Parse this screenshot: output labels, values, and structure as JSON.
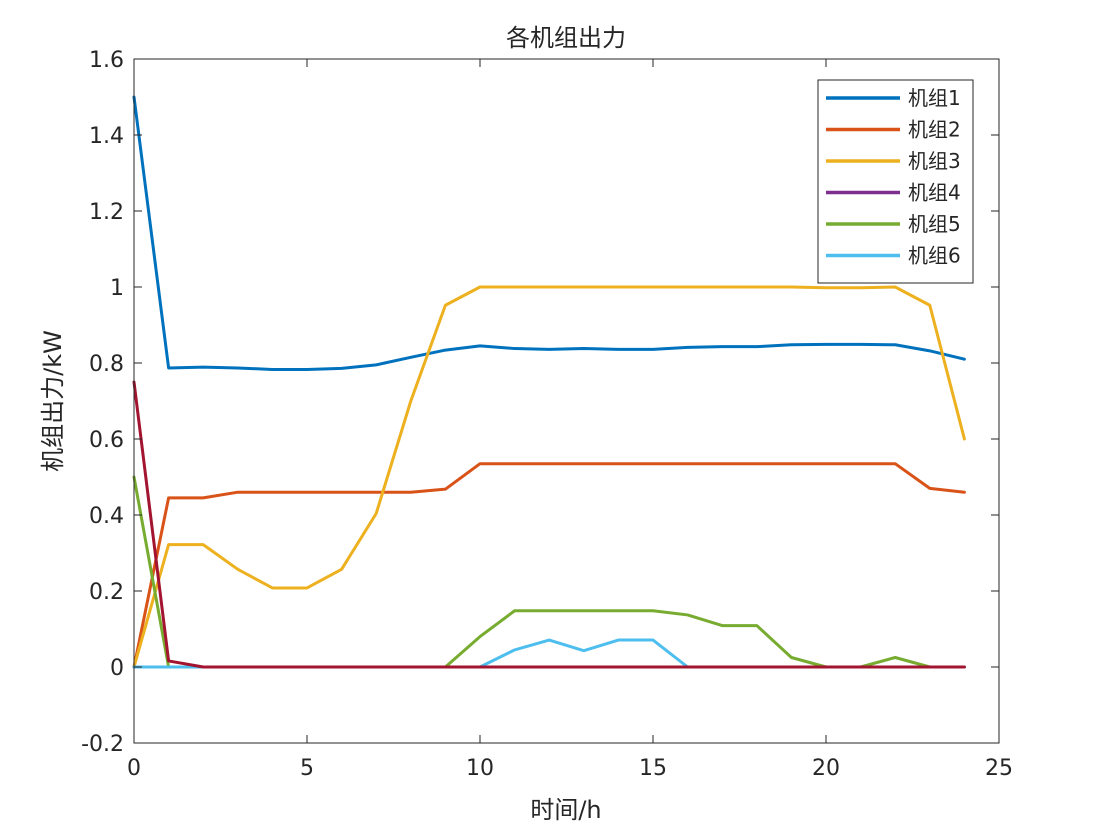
{
  "chart_data": {
    "type": "line",
    "title": "各机组出力",
    "xlabel": "时间/h",
    "ylabel": "机组出力/kW",
    "xlim": [
      0,
      25
    ],
    "ylim": [
      -0.2,
      1.6
    ],
    "xticks": [
      "0",
      "5",
      "10",
      "15",
      "20",
      "25"
    ],
    "yticks": [
      "-0.2",
      "0",
      "0.2",
      "0.4",
      "0.6",
      "0.8",
      "1",
      "1.2",
      "1.4",
      "1.6"
    ],
    "grid": false,
    "legend_position": "top-right",
    "x": [
      0,
      1,
      2,
      3,
      4,
      5,
      6,
      7,
      8,
      9,
      10,
      11,
      12,
      13,
      14,
      15,
      16,
      17,
      18,
      19,
      20,
      21,
      22,
      23,
      24
    ],
    "series": [
      {
        "name": "机组1",
        "color": "#0072BD",
        "values": [
          1.5,
          0.787,
          0.789,
          0.787,
          0.783,
          0.783,
          0.786,
          0.795,
          0.815,
          0.834,
          0.845,
          0.838,
          0.836,
          0.838,
          0.836,
          0.836,
          0.841,
          0.843,
          0.843,
          0.848,
          0.849,
          0.849,
          0.848,
          0.832,
          0.81
        ]
      },
      {
        "name": "机组2",
        "color": "#D95319",
        "values": [
          0,
          0.445,
          0.445,
          0.46,
          0.46,
          0.46,
          0.46,
          0.46,
          0.46,
          0.468,
          0.535,
          0.535,
          0.535,
          0.535,
          0.535,
          0.535,
          0.535,
          0.535,
          0.535,
          0.535,
          0.535,
          0.535,
          0.535,
          0.47,
          0.46
        ]
      },
      {
        "name": "机组3",
        "color": "#EDB120",
        "values": [
          0,
          0.322,
          0.322,
          0.257,
          0.208,
          0.208,
          0.257,
          0.404,
          0.7,
          0.952,
          1.0,
          1.0,
          1.0,
          1.0,
          1.0,
          1.0,
          1.0,
          1.0,
          1.0,
          1.0,
          0.998,
          0.998,
          1.0,
          0.952,
          0.6
        ]
      },
      {
        "name": "机组4",
        "color": "#7E2F8E",
        "values": [
          0,
          0,
          0,
          0,
          0,
          0,
          0,
          0,
          0,
          0,
          0,
          0,
          0,
          0,
          0,
          0,
          0,
          0,
          0,
          0,
          0,
          0,
          0,
          0,
          0
        ]
      },
      {
        "name": "机组5",
        "color": "#77AC30",
        "values": [
          0.5,
          0,
          0,
          0,
          0,
          0,
          0,
          0,
          0,
          0,
          0.08,
          0.148,
          0.148,
          0.148,
          0.148,
          0.148,
          0.137,
          0.109,
          0.109,
          0.025,
          0,
          0,
          0.025,
          0,
          0
        ]
      },
      {
        "name": "机组6",
        "color": "#4DBEEE",
        "values": [
          0,
          0,
          0,
          0,
          0,
          0,
          0,
          0,
          0,
          0,
          0,
          0.045,
          0.071,
          0.043,
          0.071,
          0.071,
          0,
          0,
          0,
          0,
          0,
          0,
          0,
          0,
          0
        ]
      }
    ],
    "extra_series": [
      {
        "color": "#A2142F",
        "values": [
          0.75,
          0.016,
          0,
          0,
          0,
          0,
          0,
          0,
          0,
          0,
          0,
          0,
          0,
          0,
          0,
          0,
          0,
          0,
          0,
          0,
          0,
          0,
          0,
          0,
          0
        ]
      }
    ]
  }
}
